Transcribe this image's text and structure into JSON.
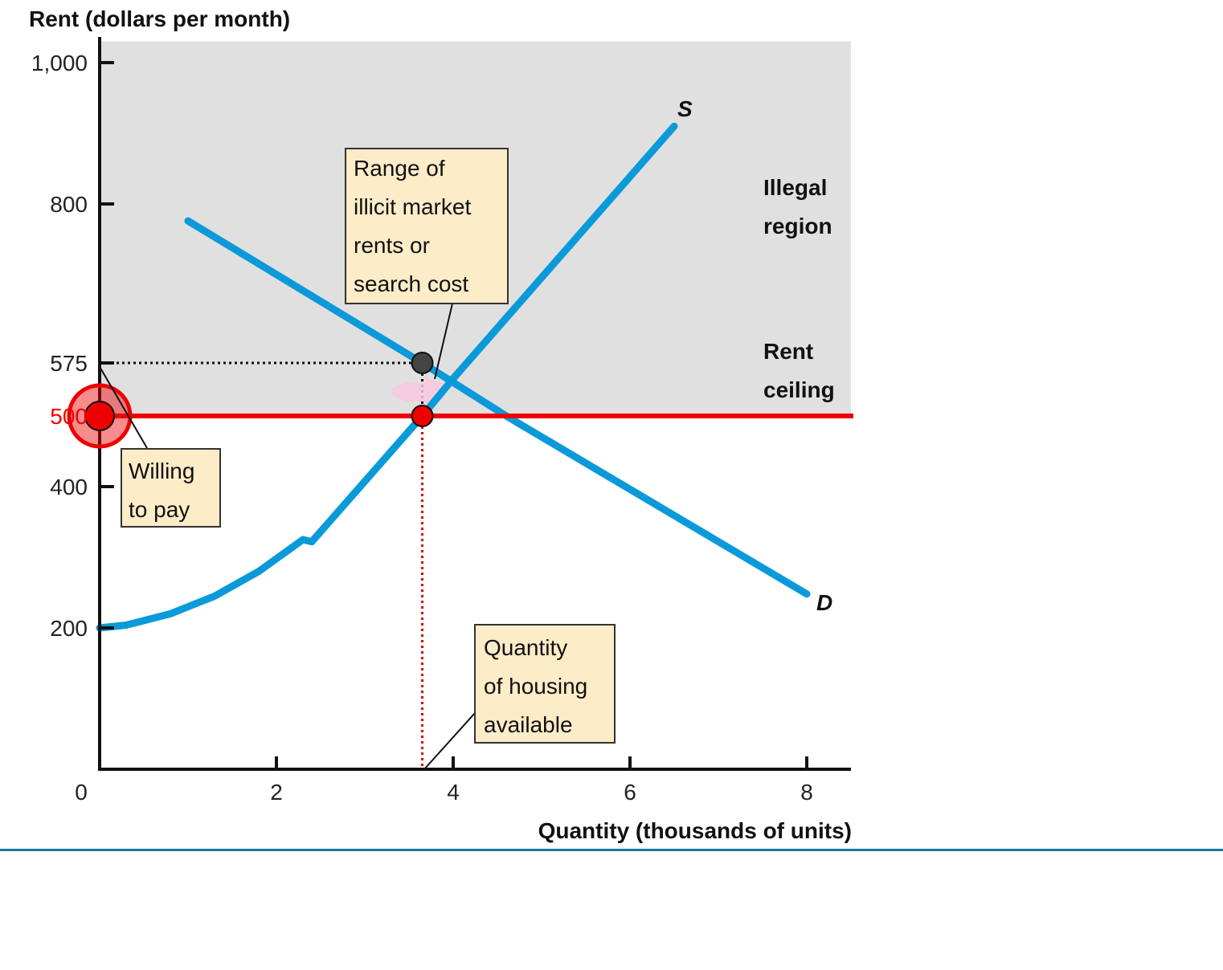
{
  "chart_data": {
    "type": "line",
    "title": "",
    "ylabel": "Rent (dollars per month)",
    "xlabel": "Quantity (thousands of units)",
    "xlim": [
      0,
      8.5
    ],
    "ylim": [
      0,
      1000
    ],
    "x_ticks": [
      {
        "value": 0,
        "label": "0"
      },
      {
        "value": 2,
        "label": "2"
      },
      {
        "value": 4,
        "label": "4"
      },
      {
        "value": 6,
        "label": "6"
      },
      {
        "value": 8,
        "label": "8"
      }
    ],
    "y_ticks": [
      {
        "value": 200,
        "label": "200"
      },
      {
        "value": 400,
        "label": "400"
      },
      {
        "value": 575,
        "label": "575"
      },
      {
        "value": 800,
        "label": "800"
      },
      {
        "value": 1000,
        "label": "1,000"
      }
    ],
    "ceiling_tick": {
      "value": 500,
      "label": "500"
    },
    "grid": false,
    "series": [
      {
        "name": "S",
        "color": "#0a9ad9",
        "points": [
          [
            0,
            200
          ],
          [
            0.3,
            204
          ],
          [
            0.8,
            220
          ],
          [
            1.3,
            245
          ],
          [
            1.8,
            280
          ],
          [
            2.3,
            325
          ],
          [
            2.4,
            322
          ],
          [
            3.65,
            500
          ],
          [
            4.0,
            553
          ],
          [
            6.5,
            910
          ]
        ]
      },
      {
        "name": "D",
        "color": "#0a9ad9",
        "points": [
          [
            1.0,
            776
          ],
          [
            3.65,
            575
          ],
          [
            4.6,
            500
          ],
          [
            8.0,
            248
          ]
        ]
      }
    ],
    "rent_ceiling": {
      "value": 500,
      "color": "#ee0000",
      "label_line1": "Rent",
      "label_line2": "ceiling"
    },
    "illegal_region": {
      "from": 500,
      "to": 1030,
      "label_line1": "Illegal",
      "label_line2": "region",
      "color": "#e0e0e0"
    },
    "quantity_available": 3.65,
    "willing_to_pay": 575,
    "points": [
      {
        "name": "willing-to-pay-point",
        "x": 3.65,
        "y": 575,
        "color": "#444444"
      },
      {
        "name": "ceiling-quantity-point",
        "x": 3.65,
        "y": 500,
        "color": "#ee0000"
      },
      {
        "name": "ceiling-axis-highlight",
        "x": 0,
        "y": 500,
        "color": "#ee0000"
      }
    ],
    "annotations": {
      "range_box": [
        "Range of",
        "illicit market",
        "rents or",
        "search cost"
      ],
      "willing_box": [
        "Willing",
        "to pay"
      ],
      "quantity_box": [
        "Quantity",
        "of housing",
        "available"
      ]
    }
  },
  "colors": {
    "axis": "#111111",
    "box_fill": "#fdecc8",
    "box_stroke": "#333333",
    "footer_rule": "#1a7aa0"
  }
}
